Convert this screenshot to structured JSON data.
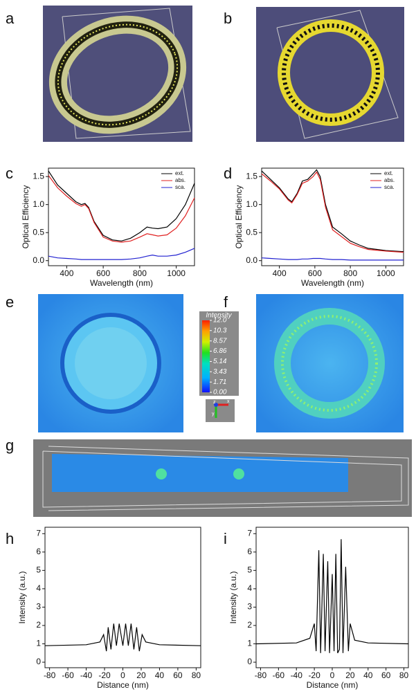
{
  "panel_labels": [
    "a",
    "b",
    "c",
    "d",
    "e",
    "f",
    "g",
    "h",
    "i"
  ],
  "colorbar": {
    "title": "Intensity",
    "ticks": [
      {
        "value": 12,
        "label": "12.0"
      },
      10.3,
      8.57,
      6.86,
      5.14,
      3.43,
      1.71,
      {
        "value": 0,
        "label": "0.00"
      }
    ]
  },
  "axis_icon": [
    "z",
    "x",
    "y"
  ],
  "chart_data": [
    {
      "type": "line",
      "xlabel": "Wavelength (nm)",
      "ylabel": "Optical Efficiency",
      "legend": "upper right",
      "x": [
        300,
        350,
        400,
        450,
        480,
        500,
        520,
        550,
        600,
        650,
        700,
        750,
        800,
        840,
        870,
        900,
        950,
        1000,
        1050,
        1100
      ],
      "series": [
        {
          "name": "ext.",
          "color": "#000000",
          "values": [
            1.6,
            1.35,
            1.2,
            1.05,
            1.0,
            1.02,
            0.95,
            0.7,
            0.45,
            0.37,
            0.35,
            0.4,
            0.5,
            0.6,
            0.58,
            0.57,
            0.6,
            0.75,
            1.0,
            1.38
          ]
        },
        {
          "name": "abs.",
          "color": "#e02020",
          "values": [
            1.52,
            1.3,
            1.15,
            1.02,
            0.97,
            1.0,
            0.93,
            0.68,
            0.42,
            0.35,
            0.33,
            0.35,
            0.42,
            0.48,
            0.46,
            0.44,
            0.46,
            0.58,
            0.8,
            1.12
          ]
        },
        {
          "name": "sca.",
          "color": "#2020d0",
          "values": [
            0.08,
            0.05,
            0.04,
            0.03,
            0.02,
            0.02,
            0.02,
            0.02,
            0.02,
            0.02,
            0.02,
            0.03,
            0.05,
            0.08,
            0.1,
            0.08,
            0.08,
            0.1,
            0.15,
            0.22
          ]
        }
      ],
      "xlim": [
        300,
        1100
      ],
      "xticks": [
        400,
        600,
        800,
        1000
      ],
      "ylim": [
        -0.09,
        1.65
      ],
      "yticks": [
        {
          "value": 0,
          "label": "0.0"
        },
        0.5,
        {
          "value": 1,
          "label": "1.0"
        },
        1.5
      ]
    },
    {
      "type": "line",
      "xlabel": "Wavelength (nm)",
      "ylabel": "Optical Efficiency",
      "legend": "upper right",
      "x": [
        300,
        350,
        400,
        450,
        470,
        500,
        530,
        560,
        590,
        610,
        630,
        660,
        700,
        750,
        800,
        850,
        900,
        1000,
        1100
      ],
      "series": [
        {
          "name": "ext.",
          "color": "#000000",
          "values": [
            1.6,
            1.45,
            1.3,
            1.1,
            1.05,
            1.2,
            1.42,
            1.45,
            1.55,
            1.62,
            1.5,
            1.0,
            0.6,
            0.48,
            0.35,
            0.28,
            0.22,
            0.18,
            0.16
          ]
        },
        {
          "name": "abs.",
          "color": "#e02020",
          "values": [
            1.55,
            1.42,
            1.28,
            1.08,
            1.03,
            1.18,
            1.38,
            1.42,
            1.5,
            1.58,
            1.45,
            0.95,
            0.55,
            0.43,
            0.31,
            0.25,
            0.2,
            0.17,
            0.15
          ]
        },
        {
          "name": "sca.",
          "color": "#2020d0",
          "values": [
            0.05,
            0.04,
            0.03,
            0.02,
            0.02,
            0.02,
            0.03,
            0.03,
            0.04,
            0.04,
            0.04,
            0.03,
            0.02,
            0.02,
            0.01,
            0.01,
            0.01,
            0.01,
            0.01
          ]
        }
      ],
      "xlim": [
        300,
        1100
      ],
      "xticks": [
        400,
        600,
        800,
        1000
      ],
      "ylim": [
        -0.09,
        1.65
      ],
      "yticks": [
        {
          "value": 0,
          "label": "0.0"
        },
        0.5,
        {
          "value": 1,
          "label": "1.0"
        },
        1.5
      ]
    },
    {
      "type": "line",
      "xlabel": "Distance (nm)",
      "ylabel": "Intensity (a.u.)",
      "color": "#000000",
      "x": [
        -85,
        -40,
        -25,
        -21,
        -18,
        -16,
        -13,
        -10,
        -7,
        -4,
        0,
        3,
        6,
        9,
        12,
        15,
        18,
        21,
        25,
        40,
        85
      ],
      "values": [
        0.9,
        0.95,
        1.1,
        1.5,
        0.6,
        1.9,
        0.7,
        2.1,
        0.9,
        2.1,
        0.9,
        2.1,
        0.9,
        2.1,
        0.7,
        1.9,
        0.6,
        1.5,
        1.1,
        0.95,
        0.9
      ],
      "xlim": [
        -85,
        85
      ],
      "xticks": [
        -80,
        -60,
        -40,
        -20,
        0,
        20,
        40,
        60,
        80
      ],
      "ylim": [
        -0.3,
        7.35
      ],
      "yticks": [
        0,
        1,
        2,
        3,
        4,
        5,
        6,
        7
      ]
    },
    {
      "type": "line",
      "xlabel": "Distance (nm)",
      "ylabel": "Intensity (a.u.)",
      "color": "#000000",
      "x": [
        -85,
        -40,
        -25,
        -20,
        -18,
        -15,
        -13,
        -10,
        -8,
        -5,
        -3,
        0,
        2,
        4,
        6,
        8,
        10,
        12,
        15,
        18,
        20,
        25,
        40,
        85
      ],
      "values": [
        1.0,
        1.05,
        1.3,
        2.1,
        0.6,
        6.1,
        0.5,
        5.9,
        0.6,
        5.5,
        0.5,
        4.8,
        0.6,
        5.9,
        0.5,
        0.7,
        6.7,
        0.5,
        5.2,
        0.6,
        2.1,
        1.2,
        1.05,
        1.0
      ],
      "xlim": [
        -85,
        85
      ],
      "xticks": [
        -80,
        -60,
        -40,
        -20,
        0,
        20,
        40,
        60,
        80
      ],
      "ylim": [
        -0.3,
        7.35
      ],
      "yticks": [
        0,
        1,
        2,
        3,
        4,
        5,
        6,
        7
      ]
    }
  ]
}
